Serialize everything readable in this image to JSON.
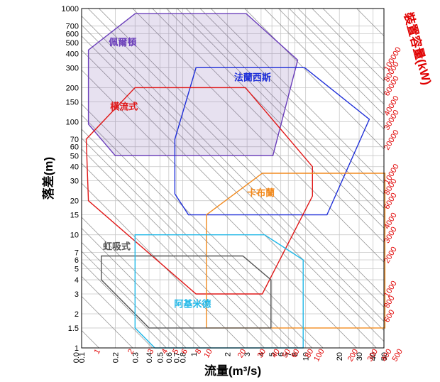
{
  "chart_data": {
    "type": "area",
    "xlabel": "流量(m³/s)",
    "ylabel": "落差(m)",
    "y2label": "裝置容量(kW)",
    "xscale": "log",
    "yscale": "log",
    "xlim": [
      0.1,
      50
    ],
    "ylim": [
      1,
      1000
    ],
    "x_ticks": [
      {
        "value": 0.1,
        "label": "0.1"
      },
      {
        "value": 0.2,
        "label": "0.2"
      },
      {
        "value": 0.3,
        "label": "0.3"
      },
      {
        "value": 0.4,
        "label": "0.4"
      },
      {
        "value": 0.5,
        "label": "0.5"
      },
      {
        "value": 0.6,
        "label": "0.6"
      },
      {
        "value": 0.7,
        "label": "0.7"
      },
      {
        "value": 0.8,
        "label": "0.8"
      },
      {
        "value": 1,
        "label": "1"
      },
      {
        "value": 2,
        "label": "2"
      },
      {
        "value": 3,
        "label": "3"
      },
      {
        "value": 4,
        "label": "4"
      },
      {
        "value": 5,
        "label": "5"
      },
      {
        "value": 6,
        "label": "6"
      },
      {
        "value": 7,
        "label": "7"
      },
      {
        "value": 8,
        "label": "8"
      },
      {
        "value": 10,
        "label": "10"
      },
      {
        "value": 20,
        "label": "20"
      },
      {
        "value": 30,
        "label": "30"
      },
      {
        "value": 40,
        "label": "40"
      },
      {
        "value": 50,
        "label": "50"
      }
    ],
    "x_extra_label": "0.0",
    "y_ticks": [
      {
        "value": 1,
        "label": "1"
      },
      {
        "value": 1.5,
        "label": "1.5"
      },
      {
        "value": 2,
        "label": "2"
      },
      {
        "value": 3,
        "label": "3"
      },
      {
        "value": 4,
        "label": "4"
      },
      {
        "value": 5,
        "label": "5"
      },
      {
        "value": 6,
        "label": "6"
      },
      {
        "value": 7,
        "label": "7"
      },
      {
        "value": 10,
        "label": "10"
      },
      {
        "value": 15,
        "label": "15"
      },
      {
        "value": 20,
        "label": "20"
      },
      {
        "value": 30,
        "label": "30"
      },
      {
        "value": 40,
        "label": "40"
      },
      {
        "value": 50,
        "label": "50"
      },
      {
        "value": 60,
        "label": "60"
      },
      {
        "value": 70,
        "label": "70"
      },
      {
        "value": 100,
        "label": "100"
      },
      {
        "value": 150,
        "label": "150"
      },
      {
        "value": 200,
        "label": "200"
      },
      {
        "value": 300,
        "label": "300"
      },
      {
        "value": 400,
        "label": "400"
      },
      {
        "value": 500,
        "label": "500"
      },
      {
        "value": 600,
        "label": "600"
      },
      {
        "value": 700,
        "label": "700"
      },
      {
        "value": 1000,
        "label": "1000"
      }
    ],
    "power_lines_kw": [
      1,
      2,
      3,
      4,
      5,
      6,
      8,
      10,
      20,
      30,
      40,
      50,
      60,
      80,
      100,
      200,
      300,
      400,
      500,
      600,
      800,
      1000,
      2000,
      3000,
      4000,
      5000,
      6000,
      8000,
      10000,
      20000,
      30000,
      40000,
      50000,
      60000,
      80000,
      100000,
      200000
    ],
    "power_bottom_labels": [
      {
        "kw": 1,
        "label": "1"
      },
      {
        "kw": 2,
        "label": "2"
      },
      {
        "kw": 3,
        "label": "3"
      },
      {
        "kw": 4,
        "label": "4"
      },
      {
        "kw": 5,
        "label": "5"
      },
      {
        "kw": 6,
        "label": "6"
      },
      {
        "kw": 8,
        "label": "8"
      },
      {
        "kw": 10,
        "label": "10"
      },
      {
        "kw": 20,
        "label": "20"
      },
      {
        "kw": 30,
        "label": "30"
      },
      {
        "kw": 40,
        "label": "40"
      },
      {
        "kw": 50,
        "label": "50"
      },
      {
        "kw": 60,
        "label": "60"
      },
      {
        "kw": 80,
        "label": "80"
      },
      {
        "kw": 100,
        "label": "100"
      },
      {
        "kw": 200,
        "label": "200"
      },
      {
        "kw": 300,
        "label": "300"
      },
      {
        "kw": 400,
        "label": "400"
      },
      {
        "kw": 500,
        "label": "500"
      }
    ],
    "power_right_labels": [
      {
        "kw": 600,
        "label": "600"
      },
      {
        "kw": 800,
        "label": "800"
      },
      {
        "kw": 1000,
        "label": "1000"
      },
      {
        "kw": 2000,
        "label": "2000"
      },
      {
        "kw": 3000,
        "label": "3000"
      },
      {
        "kw": 4000,
        "label": "4000"
      },
      {
        "kw": 6000,
        "label": "6000"
      },
      {
        "kw": 8000,
        "label": "8000"
      },
      {
        "kw": 10000,
        "label": "10000"
      },
      {
        "kw": 20000,
        "label": "20000"
      },
      {
        "kw": 30000,
        "label": "30000"
      },
      {
        "kw": 40000,
        "label": "40000"
      },
      {
        "kw": 60000,
        "label": "60000"
      },
      {
        "kw": 80000,
        "label": "80000"
      },
      {
        "kw": 100000,
        "label": "100000"
      }
    ],
    "series": [
      {
        "name": "佩爾頓",
        "color": "#6a3dba",
        "fill": "rgba(120, 90, 170, 0.18)",
        "points": [
          [
            0.115,
            430
          ],
          [
            0.3,
            900
          ],
          [
            2.95,
            900
          ],
          [
            8.5,
            350
          ],
          [
            5.1,
            50
          ],
          [
            0.2,
            50
          ],
          [
            0.115,
            95
          ]
        ],
        "label_at": [
          0.175,
          470
        ]
      },
      {
        "name": "法蘭西斯",
        "color": "#1f2fd8",
        "fill": "none",
        "points": [
          [
            1.05,
            300
          ],
          [
            9.8,
            300
          ],
          [
            37,
            105
          ],
          [
            15.5,
            15
          ],
          [
            0.9,
            15
          ],
          [
            0.68,
            23
          ],
          [
            0.68,
            70
          ]
        ],
        "label_at": [
          2.3,
          230
        ]
      },
      {
        "name": "橫流式",
        "color": "#e01818",
        "fill": "none",
        "points": [
          [
            0.3,
            200
          ],
          [
            2.9,
            200
          ],
          [
            11.5,
            40
          ],
          [
            11.5,
            22
          ],
          [
            4.1,
            3
          ],
          [
            1.05,
            3
          ],
          [
            0.115,
            20
          ],
          [
            0.11,
            70
          ]
        ],
        "label_at": [
          0.18,
          128
        ]
      },
      {
        "name": "卡布蘭",
        "color": "#f28a1e",
        "fill": "none",
        "points": [
          [
            1.3,
            15
          ],
          [
            4.1,
            35
          ],
          [
            51,
            35
          ],
          [
            51,
            1.5
          ],
          [
            1.3,
            1.5
          ]
        ],
        "label_at": [
          3,
          22
        ]
      },
      {
        "name": "虹吸式",
        "color": "#555555",
        "fill": "none",
        "points": [
          [
            0.15,
            6.5
          ],
          [
            2.75,
            6.5
          ],
          [
            4.9,
            4
          ],
          [
            4.9,
            1.5
          ],
          [
            0.4,
            1.5
          ],
          [
            0.15,
            4
          ]
        ],
        "label_at": [
          0.155,
          7.4
        ]
      },
      {
        "name": "阿基米德",
        "color": "#20b8e8",
        "fill": "none",
        "points": [
          [
            0.3,
            10
          ],
          [
            4.3,
            10
          ],
          [
            9.5,
            6
          ],
          [
            9.5,
            1
          ],
          [
            0.45,
            1
          ],
          [
            0.3,
            1.5
          ]
        ],
        "label_at": [
          0.67,
          2.3
        ]
      }
    ]
  }
}
